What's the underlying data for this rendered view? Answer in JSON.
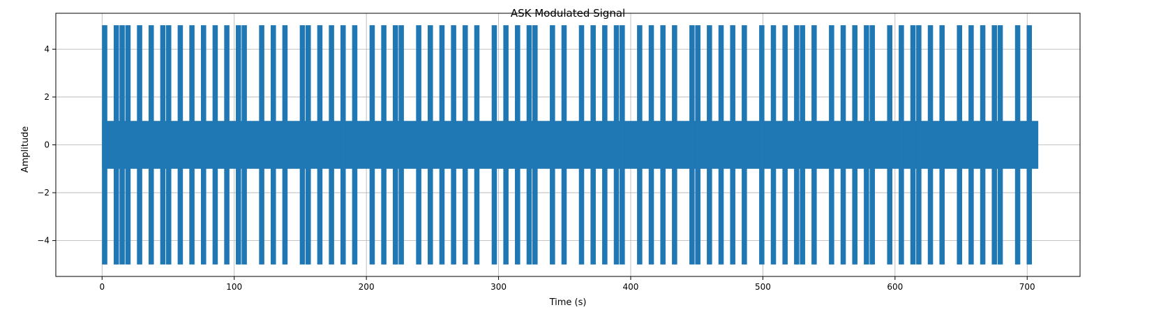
{
  "chart_data": {
    "type": "line",
    "title": "ASK Modulated Signal",
    "xlabel": "Time (s)",
    "ylabel": "Amplitude",
    "xlim": [
      -35,
      740
    ],
    "ylim": [
      -5.5,
      5.5
    ],
    "xticks": [
      0,
      100,
      200,
      300,
      400,
      500,
      600,
      700
    ],
    "yticks": [
      -4,
      -2,
      0,
      2,
      4
    ],
    "tick_labels_x": [
      "0",
      "100",
      "200",
      "300",
      "400",
      "500",
      "600",
      "700"
    ],
    "tick_labels_y": [
      "−4",
      "−2",
      "0",
      "2",
      "4"
    ],
    "grid": true,
    "series": [
      {
        "color": "#1f77b4",
        "bit_duration": 4.4,
        "amplitude_high": 5,
        "amplitude_low": 1,
        "bits": [
          1,
          0,
          1,
          1,
          1,
          0,
          1,
          0,
          1,
          0,
          1,
          1,
          0,
          1,
          0,
          1,
          0,
          1,
          0,
          1,
          0,
          1,
          0,
          1,
          1,
          0,
          0,
          1,
          0,
          1,
          0,
          1,
          0,
          0,
          1,
          1,
          0,
          1,
          0,
          1,
          0,
          1,
          0,
          1,
          0,
          0,
          1,
          0,
          1,
          0,
          1,
          1,
          0,
          0,
          1,
          0,
          1,
          0,
          1,
          0,
          1,
          0,
          1,
          0,
          1,
          0,
          0,
          1,
          0,
          1,
          0,
          1,
          0,
          1,
          1,
          0,
          0,
          1,
          0,
          1,
          0,
          0,
          1,
          0,
          1,
          0,
          1,
          0,
          1,
          1,
          0,
          0,
          1,
          0,
          1,
          0,
          1,
          0,
          1,
          0,
          0,
          1,
          1,
          0,
          1,
          0,
          1,
          0,
          1,
          0,
          1,
          0,
          0,
          1,
          0,
          1,
          0,
          1,
          0,
          1,
          1,
          0,
          1,
          0,
          0,
          1,
          0,
          1,
          0,
          1,
          0,
          1,
          1,
          0,
          0,
          1,
          0,
          1,
          0,
          1,
          1,
          0,
          1,
          0,
          1,
          0,
          0,
          1,
          0,
          1,
          0,
          1,
          0,
          1,
          1,
          0,
          0,
          1,
          0,
          1,
          0
        ]
      }
    ]
  }
}
